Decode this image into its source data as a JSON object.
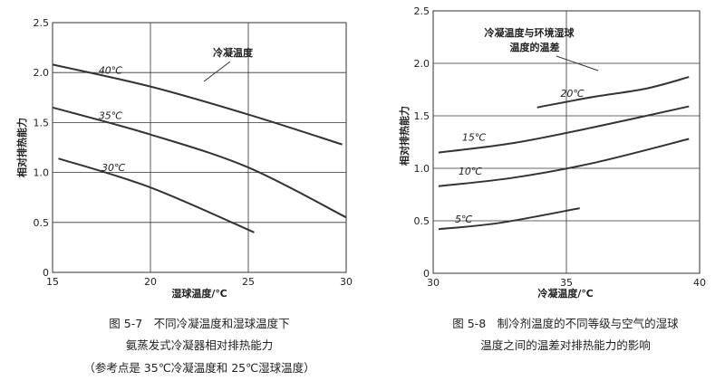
{
  "chart_data": [
    {
      "type": "line",
      "xlabel": "湿球温度/℃",
      "ylabel": "相对排热能力",
      "xlim": [
        15,
        30
      ],
      "ylim": [
        0,
        2.5
      ],
      "xticks": [
        "15",
        "20",
        "25",
        "30"
      ],
      "yticks": [
        "0",
        "0.5",
        "1.0",
        "1.5",
        "2.0",
        "2.5"
      ],
      "grid": true,
      "annotation": "冷凝温度",
      "series": [
        {
          "name": "40℃",
          "x": [
            15,
            20,
            25,
            29.8
          ],
          "y": [
            2.08,
            1.86,
            1.58,
            1.28
          ]
        },
        {
          "name": "35℃",
          "x": [
            15,
            20,
            25,
            30
          ],
          "y": [
            1.65,
            1.38,
            1.05,
            0.55
          ]
        },
        {
          "name": "30℃",
          "x": [
            15.3,
            20,
            25.3
          ],
          "y": [
            1.14,
            0.85,
            0.4
          ]
        }
      ],
      "caption": [
        "图 5-7　不同冷凝温度和湿球温度下",
        "氨蒸发式冷凝器相对排热能力",
        "（参考点是 35℃冷凝温度和 25℃湿球温度）"
      ]
    },
    {
      "type": "line",
      "xlabel": "冷凝温度/℃",
      "ylabel": "相对排热能力",
      "xlim": [
        30,
        40
      ],
      "ylim": [
        0,
        2.5
      ],
      "xticks": [
        "30",
        "35",
        "40"
      ],
      "yticks": [
        "0",
        "0.5",
        "1.0",
        "1.5",
        "2.0",
        "2.5"
      ],
      "grid": true,
      "annotation": [
        "冷凝温度与环境湿球",
        "温度的温差"
      ],
      "series": [
        {
          "name": "20℃",
          "x": [
            33.9,
            36,
            38,
            39.6
          ],
          "y": [
            1.58,
            1.68,
            1.76,
            1.87
          ]
        },
        {
          "name": "15℃",
          "x": [
            30.2,
            33,
            36,
            39.6
          ],
          "y": [
            1.15,
            1.24,
            1.39,
            1.59
          ]
        },
        {
          "name": "10℃",
          "x": [
            30.2,
            33,
            36,
            39.6
          ],
          "y": [
            0.83,
            0.91,
            1.05,
            1.28
          ]
        },
        {
          "name": "5℃",
          "x": [
            30.2,
            32.5,
            35.5
          ],
          "y": [
            0.42,
            0.48,
            0.62
          ]
        }
      ],
      "caption": [
        "图 5-8　制冷剂温度的不同等级与空气的湿球",
        "温度之间的温差对排热能力的影响"
      ]
    }
  ]
}
